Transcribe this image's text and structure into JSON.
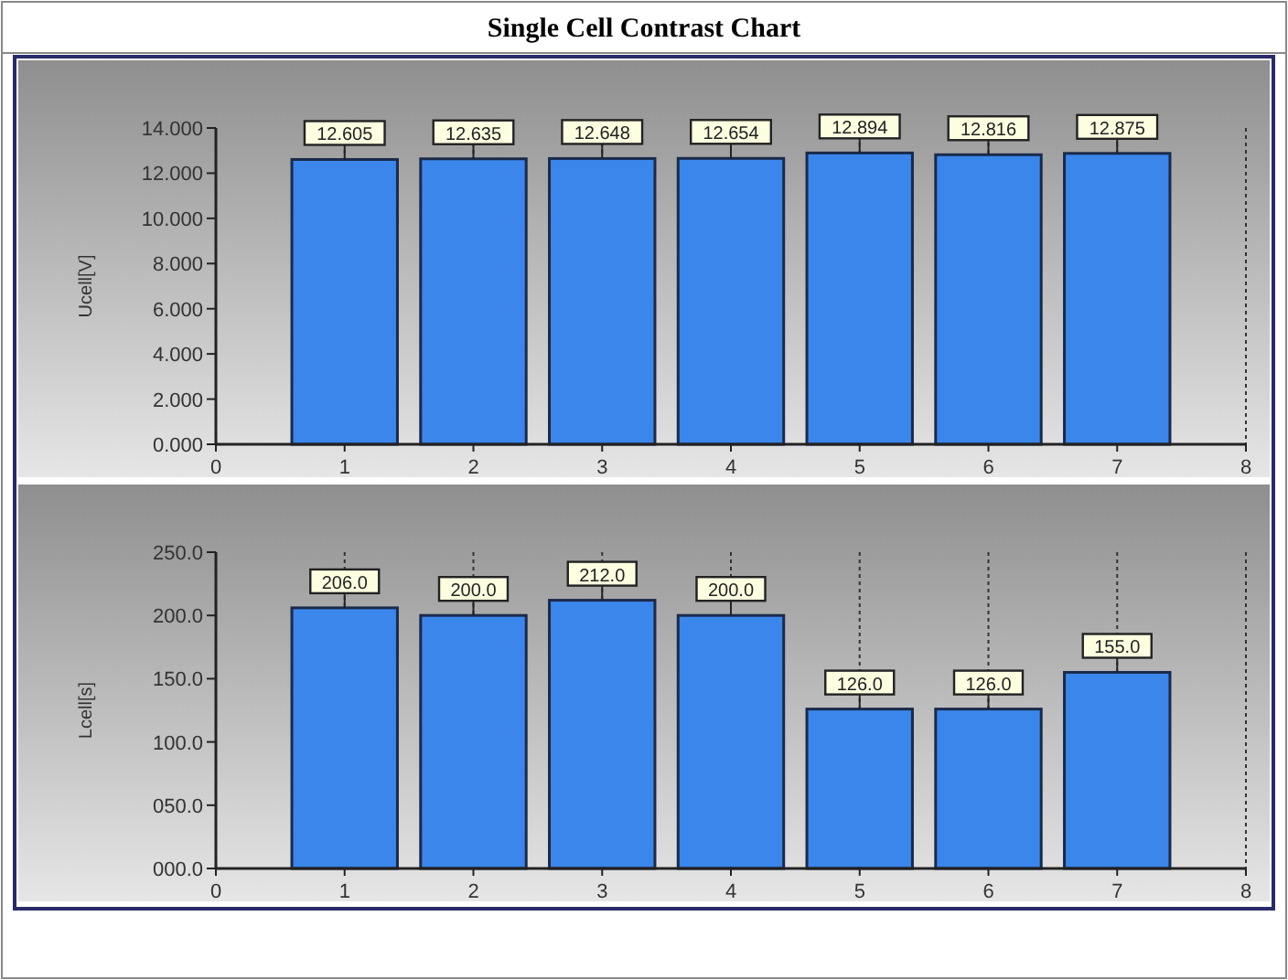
{
  "chart_data": [
    {
      "type": "bar",
      "title": "Single Cell Contrast Chart",
      "ylabel": "Ucell[V]",
      "x": [
        1,
        2,
        3,
        4,
        5,
        6,
        7
      ],
      "values": [
        12.605,
        12.635,
        12.648,
        12.654,
        12.894,
        12.816,
        12.875
      ],
      "value_labels": [
        "12.605",
        "12.635",
        "12.648",
        "12.654",
        "12.894",
        "12.816",
        "12.875"
      ],
      "color": "#3b86ea",
      "xlim": [
        0,
        8
      ],
      "xticks": [
        0,
        1,
        2,
        3,
        4,
        5,
        6,
        7,
        8
      ],
      "ylim": [
        0,
        14
      ],
      "yticks": [
        {
          "value": 0,
          "label": "0.000"
        },
        {
          "value": 2,
          "label": "2.000"
        },
        {
          "value": 4,
          "label": "4.000"
        },
        {
          "value": 6,
          "label": "6.000"
        },
        {
          "value": 8,
          "label": "8.000"
        },
        {
          "value": 10,
          "label": "10.000"
        },
        {
          "value": 12,
          "label": "12.000"
        },
        {
          "value": 14,
          "label": "14.000"
        }
      ],
      "grid": "x"
    },
    {
      "type": "bar",
      "ylabel": "Lcell[s]",
      "x": [
        1,
        2,
        3,
        4,
        5,
        6,
        7
      ],
      "values": [
        206,
        200,
        212,
        200,
        126,
        126,
        155
      ],
      "value_labels": [
        "206.0",
        "200.0",
        "212.0",
        "200.0",
        "126.0",
        "126.0",
        "155.0"
      ],
      "color": "#3b86ea",
      "xlim": [
        0,
        8
      ],
      "xticks": [
        0,
        1,
        2,
        3,
        4,
        5,
        6,
        7,
        8
      ],
      "ylim": [
        0,
        250
      ],
      "yticks": [
        {
          "value": 0,
          "label": "000.0"
        },
        {
          "value": 50,
          "label": "050.0"
        },
        {
          "value": 100,
          "label": "100.0"
        },
        {
          "value": 150,
          "label": "150.0"
        },
        {
          "value": 200,
          "label": "200.0"
        },
        {
          "value": 250,
          "label": "250.0"
        }
      ],
      "grid": "x"
    }
  ]
}
